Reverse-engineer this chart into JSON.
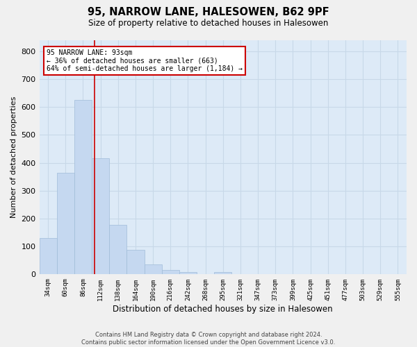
{
  "title": "95, NARROW LANE, HALESOWEN, B62 9PF",
  "subtitle": "Size of property relative to detached houses in Halesowen",
  "xlabel": "Distribution of detached houses by size in Halesowen",
  "ylabel": "Number of detached properties",
  "bar_values": [
    130,
    365,
    625,
    415,
    178,
    88,
    35,
    15,
    8,
    0,
    8,
    0,
    0,
    0,
    0,
    0,
    0,
    0,
    0,
    0,
    0
  ],
  "bin_labels": [
    "34sqm",
    "60sqm",
    "86sqm",
    "112sqm",
    "138sqm",
    "164sqm",
    "190sqm",
    "216sqm",
    "242sqm",
    "268sqm",
    "295sqm",
    "321sqm",
    "347sqm",
    "373sqm",
    "399sqm",
    "425sqm",
    "451sqm",
    "477sqm",
    "503sqm",
    "529sqm",
    "555sqm"
  ],
  "bar_color": "#c5d8f0",
  "bar_edge_color": "#a0bcd8",
  "vline_x": 2.67,
  "vline_color": "#cc0000",
  "annotation_text": "95 NARROW LANE: 93sqm\n← 36% of detached houses are smaller (663)\n64% of semi-detached houses are larger (1,184) →",
  "annotation_box_color": "#ffffff",
  "annotation_box_edge_color": "#cc0000",
  "ylim": [
    0,
    840
  ],
  "yticks": [
    0,
    100,
    200,
    300,
    400,
    500,
    600,
    700,
    800
  ],
  "grid_color": "#c8d8e8",
  "bg_color": "#ddeaf7",
  "fig_bg_color": "#f0f0f0",
  "footer_text": "Contains HM Land Registry data © Crown copyright and database right 2024.\nContains public sector information licensed under the Open Government Licence v3.0.",
  "figsize": [
    6.0,
    5.0
  ],
  "dpi": 100
}
